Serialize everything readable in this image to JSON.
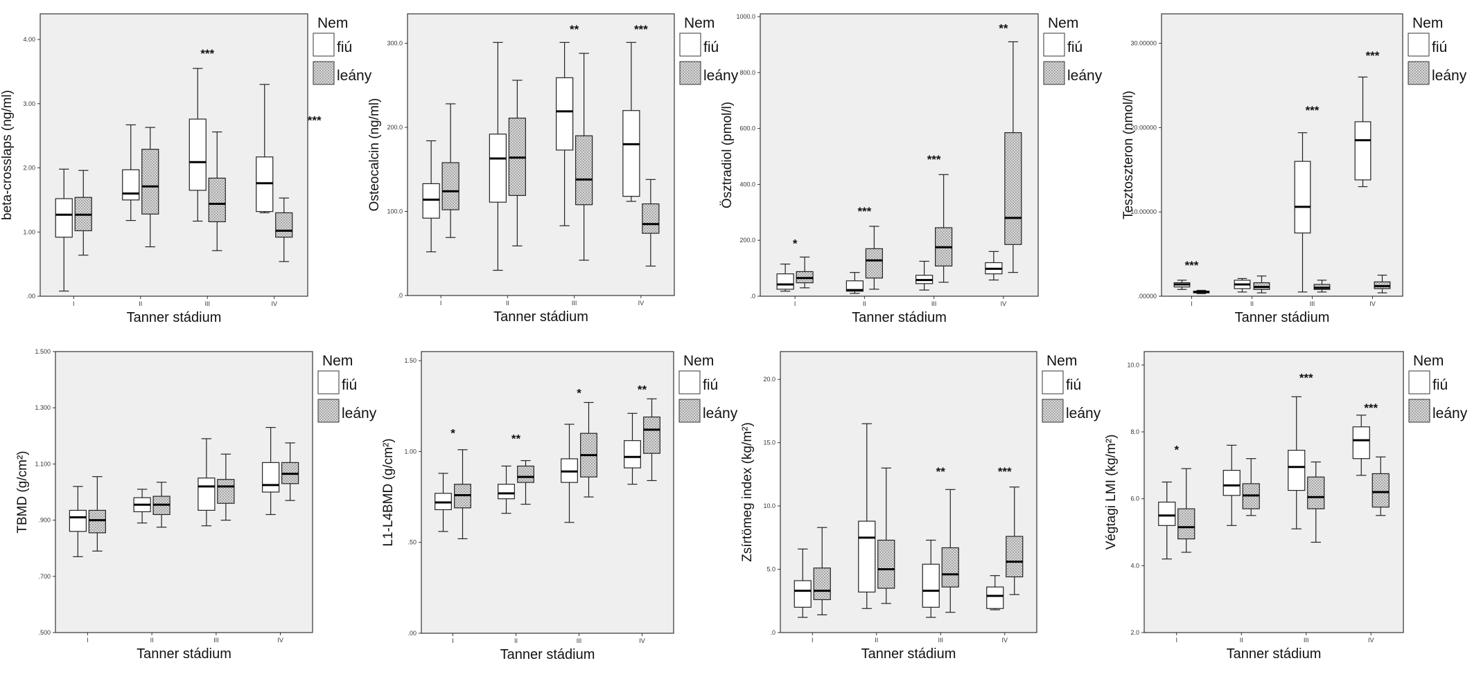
{
  "colors": {
    "plot_background": "#efefef",
    "male_box": "#ffffff",
    "female_box_hatch": "#b5b5b5"
  },
  "chart_data": [
    {
      "type": "boxplot",
      "ylabel": "beta-crosslaps (ng/ml)",
      "xlabel": "Tanner stádium",
      "ylim": [
        0,
        4.4
      ],
      "yticks": [
        0,
        1,
        2,
        3,
        4
      ],
      "ytick_labels": [
        ".00",
        "1.00",
        "2.00",
        "3.00",
        "4.00"
      ],
      "categories": [
        "I",
        "II",
        "III",
        "IV"
      ],
      "legend": {
        "title": "Nem",
        "entries": [
          "fiú",
          "leány"
        ]
      },
      "series": [
        {
          "name": "fiú",
          "stats": [
            [
              0.08,
              0.92,
              1.27,
              1.52,
              1.98
            ],
            [
              1.18,
              1.5,
              1.6,
              1.97,
              2.67
            ],
            [
              1.17,
              1.65,
              2.09,
              2.76,
              3.55
            ],
            [
              1.3,
              1.32,
              1.76,
              2.17,
              3.3
            ]
          ]
        },
        {
          "name": "leány",
          "stats": [
            [
              0.64,
              1.02,
              1.27,
              1.54,
              1.96
            ],
            [
              0.77,
              1.28,
              1.71,
              2.29,
              2.63
            ],
            [
              0.71,
              1.16,
              1.44,
              1.84,
              2.56
            ],
            [
              0.54,
              0.92,
              1.02,
              1.3,
              1.53
            ]
          ]
        }
      ],
      "annotations": [
        {
          "text": "***",
          "category": 2,
          "y": 3.72
        },
        {
          "text": "***",
          "category": 3.6,
          "y": 2.68
        }
      ]
    },
    {
      "type": "boxplot",
      "ylabel": "Osteocalcin (ng/ml)",
      "xlabel": "Tanner stádium",
      "ylim": [
        0,
        335
      ],
      "yticks": [
        0,
        100,
        200,
        300
      ],
      "ytick_labels": [
        ".0",
        "100.0",
        "200.0",
        "300.0"
      ],
      "categories": [
        "I",
        "II",
        "III",
        "IV"
      ],
      "legend": {
        "title": "Nem",
        "entries": [
          "fiú",
          "leány"
        ]
      },
      "series": [
        {
          "name": "fiú",
          "stats": [
            [
              52,
              92,
              114,
              133,
              184
            ],
            [
              30,
              111,
              163,
              192,
              301
            ],
            [
              83,
              173,
              219,
              259,
              301
            ],
            [
              112,
              118,
              180,
              220,
              301
            ]
          ]
        },
        {
          "name": "leány",
          "stats": [
            [
              69,
              102,
              124,
              158,
              228
            ],
            [
              59,
              119,
              164,
              211,
              256
            ],
            [
              42,
              108,
              138,
              190,
              288
            ],
            [
              35,
              74,
              85,
              109,
              138
            ]
          ]
        }
      ],
      "annotations": [
        {
          "text": "**",
          "category": 2,
          "y": 312
        },
        {
          "text": "***",
          "category": 3,
          "y": 312
        }
      ]
    },
    {
      "type": "boxplot",
      "ylabel": "Ösztradiol (pmol/l)",
      "xlabel": "Tanner stádium",
      "ylim": [
        0,
        1010
      ],
      "yticks": [
        0,
        200,
        400,
        600,
        800,
        1000
      ],
      "ytick_labels": [
        ".0",
        "200.0",
        "400.0",
        "600.0",
        "800.0",
        "1000.0"
      ],
      "categories": [
        "I",
        "II",
        "III",
        "IV"
      ],
      "legend": {
        "title": "Nem",
        "entries": [
          "fiú",
          "leány"
        ]
      },
      "series": [
        {
          "name": "fiú",
          "stats": [
            [
              18,
              25,
              42,
              80,
              115
            ],
            [
              10,
              18,
              22,
              55,
              85
            ],
            [
              22,
              45,
              58,
              75,
              125
            ],
            [
              58,
              80,
              98,
              120,
              160
            ]
          ]
        },
        {
          "name": "leány",
          "stats": [
            [
              30,
              48,
              65,
              88,
              140
            ],
            [
              25,
              65,
              128,
              170,
              250
            ],
            [
              50,
              108,
              175,
              245,
              435
            ],
            [
              85,
              185,
              280,
              585,
              910
            ]
          ]
        }
      ],
      "annotations": [
        {
          "text": "*",
          "category": 0,
          "y": 175
        },
        {
          "text": "***",
          "category": 1,
          "y": 290
        },
        {
          "text": "***",
          "category": 2,
          "y": 475
        },
        {
          "text": "**",
          "category": 3,
          "y": 945
        }
      ]
    },
    {
      "type": "boxplot",
      "ylabel": "Tesztoszteron (nmol/l)",
      "xlabel": "Tanner stádium",
      "ylim": [
        0,
        33.5
      ],
      "yticks": [
        0,
        10,
        20,
        30
      ],
      "ytick_labels": [
        ".00000",
        "10.00000",
        "20.00000",
        "30.00000"
      ],
      "categories": [
        "I",
        "II",
        "III",
        "IV"
      ],
      "legend": {
        "title": "Nem",
        "entries": [
          "fiú",
          "leány"
        ]
      },
      "series": [
        {
          "name": "fiú",
          "stats": [
            [
              0.8,
              1.1,
              1.4,
              1.6,
              1.9
            ],
            [
              0.5,
              0.9,
              1.4,
              1.9,
              2.1
            ],
            [
              0.5,
              7.5,
              10.6,
              16,
              19.4
            ],
            [
              13,
              13.8,
              18.5,
              20.7,
              26
            ]
          ]
        },
        {
          "name": "leány",
          "stats": [
            [
              0.3,
              0.4,
              0.5,
              0.6,
              0.7
            ],
            [
              0.4,
              0.8,
              1.1,
              1.6,
              2.4
            ],
            [
              0.5,
              0.8,
              1.0,
              1.4,
              1.9
            ],
            [
              0.4,
              0.9,
              1.2,
              1.7,
              2.5
            ]
          ]
        }
      ],
      "annotations": [
        {
          "text": "***",
          "category": 0,
          "y": 3.2
        },
        {
          "text": "***",
          "category": 2,
          "y": 21.6
        },
        {
          "text": "***",
          "category": 3,
          "y": 28.1
        }
      ]
    },
    {
      "type": "boxplot",
      "ylabel": "TBMD (g/cm²)",
      "xlabel": "Tanner stádium",
      "ylim": [
        0.5,
        1.5
      ],
      "yticks": [
        0.5,
        0.7,
        0.9,
        1.1,
        1.3,
        1.5
      ],
      "ytick_labels": [
        ".500",
        ".700",
        ".900",
        "1.100",
        "1.300",
        "1.500"
      ],
      "categories": [
        "I",
        "II",
        "III",
        "IV"
      ],
      "legend": {
        "title": "Nem",
        "entries": [
          "fiú",
          "leány"
        ]
      },
      "series": [
        {
          "name": "fiú",
          "stats": [
            [
              0.77,
              0.86,
              0.91,
              0.935,
              1.02
            ],
            [
              0.89,
              0.93,
              0.955,
              0.98,
              1.01
            ],
            [
              0.88,
              0.935,
              1.02,
              1.05,
              1.19
            ],
            [
              0.92,
              1.0,
              1.025,
              1.105,
              1.23
            ]
          ]
        },
        {
          "name": "leány",
          "stats": [
            [
              0.79,
              0.855,
              0.9,
              0.935,
              1.055
            ],
            [
              0.875,
              0.92,
              0.955,
              0.985,
              1.035
            ],
            [
              0.9,
              0.96,
              1.02,
              1.045,
              1.135
            ],
            [
              0.97,
              1.03,
              1.065,
              1.105,
              1.175
            ]
          ]
        }
      ],
      "annotations": []
    },
    {
      "type": "boxplot",
      "ylabel": "L1-L4BMD (g/cm²)",
      "xlabel": "Tanner stádium",
      "ylim": [
        0,
        1.55
      ],
      "yticks": [
        0,
        0.5,
        1.0,
        1.5
      ],
      "ytick_labels": [
        ".00",
        ".50",
        "1.00",
        "1.50"
      ],
      "categories": [
        "I",
        "II",
        "III",
        "IV"
      ],
      "legend": {
        "title": "Nem",
        "entries": [
          "fiú",
          "leány"
        ]
      },
      "series": [
        {
          "name": "fiú",
          "stats": [
            [
              0.56,
              0.68,
              0.72,
              0.77,
              0.88
            ],
            [
              0.66,
              0.74,
              0.77,
              0.82,
              0.92
            ],
            [
              0.61,
              0.83,
              0.89,
              0.96,
              1.15
            ],
            [
              0.82,
              0.91,
              0.97,
              1.06,
              1.21
            ]
          ]
        },
        {
          "name": "leány",
          "stats": [
            [
              0.52,
              0.69,
              0.76,
              0.82,
              1.01
            ],
            [
              0.71,
              0.83,
              0.86,
              0.92,
              0.95
            ],
            [
              0.75,
              0.86,
              0.98,
              1.1,
              1.27
            ],
            [
              0.84,
              0.99,
              1.12,
              1.19,
              1.29
            ]
          ]
        }
      ],
      "annotations": [
        {
          "text": "*",
          "category": 0,
          "y": 1.08
        },
        {
          "text": "**",
          "category": 1,
          "y": 1.05
        },
        {
          "text": "*",
          "category": 2,
          "y": 1.3
        },
        {
          "text": "**",
          "category": 3,
          "y": 1.32
        }
      ]
    },
    {
      "type": "boxplot",
      "ylabel": "Zsírtömeg index  (kg/m²)",
      "xlabel": "Tanner stádium",
      "ylim": [
        0,
        22.2
      ],
      "yticks": [
        0,
        5,
        10,
        15,
        20
      ],
      "ytick_labels": [
        ".0",
        "5.0",
        "10.0",
        "15.0",
        "20.0"
      ],
      "categories": [
        "I",
        "II",
        "III",
        "IV"
      ],
      "legend": {
        "title": "Nem",
        "entries": [
          "fiú",
          "leány"
        ]
      },
      "series": [
        {
          "name": "fiú",
          "stats": [
            [
              1.2,
              2.0,
              3.3,
              4.1,
              6.6
            ],
            [
              1.9,
              3.2,
              7.5,
              8.8,
              16.5
            ],
            [
              1.2,
              2.0,
              3.3,
              5.4,
              7.3
            ],
            [
              1.8,
              1.9,
              2.9,
              3.6,
              4.5
            ]
          ]
        },
        {
          "name": "leány",
          "stats": [
            [
              1.4,
              2.6,
              3.3,
              5.1,
              8.3
            ],
            [
              2.3,
              3.5,
              5.0,
              7.3,
              13.0
            ],
            [
              1.6,
              3.6,
              4.6,
              6.7,
              11.3
            ],
            [
              3.0,
              4.4,
              5.6,
              7.6,
              11.5
            ]
          ]
        }
      ],
      "annotations": [
        {
          "text": "**",
          "category": 2,
          "y": 12.4
        },
        {
          "text": "***",
          "category": 3,
          "y": 12.4
        }
      ]
    },
    {
      "type": "boxplot",
      "ylabel": "Végtagi LMI  (kg/m²)",
      "xlabel": "Tanner stádium",
      "ylim": [
        2,
        10.4
      ],
      "yticks": [
        2,
        4,
        6,
        8,
        10
      ],
      "ytick_labels": [
        "2.0",
        "4.0",
        "6.0",
        "8.0",
        "10.0"
      ],
      "categories": [
        "I",
        "II",
        "III",
        "IV"
      ],
      "legend": {
        "title": "Nem",
        "entries": [
          "fiú",
          "leány"
        ]
      },
      "series": [
        {
          "name": "fiú",
          "stats": [
            [
              4.2,
              5.2,
              5.5,
              5.9,
              6.5
            ],
            [
              5.2,
              6.1,
              6.4,
              6.85,
              7.6
            ],
            [
              5.1,
              6.25,
              6.95,
              7.45,
              9.05
            ],
            [
              6.7,
              7.2,
              7.75,
              8.15,
              8.5
            ]
          ]
        },
        {
          "name": "leány",
          "stats": [
            [
              4.4,
              4.8,
              5.15,
              5.7,
              6.9
            ],
            [
              5.5,
              5.7,
              6.1,
              6.45,
              7.2
            ],
            [
              4.7,
              5.7,
              6.05,
              6.65,
              7.1
            ],
            [
              5.5,
              5.75,
              6.2,
              6.75,
              7.25
            ]
          ]
        }
      ],
      "annotations": [
        {
          "text": "*",
          "category": 0,
          "y": 7.35
        },
        {
          "text": "***",
          "category": 2,
          "y": 9.5
        },
        {
          "text": "***",
          "category": 3,
          "y": 8.6
        }
      ]
    }
  ]
}
